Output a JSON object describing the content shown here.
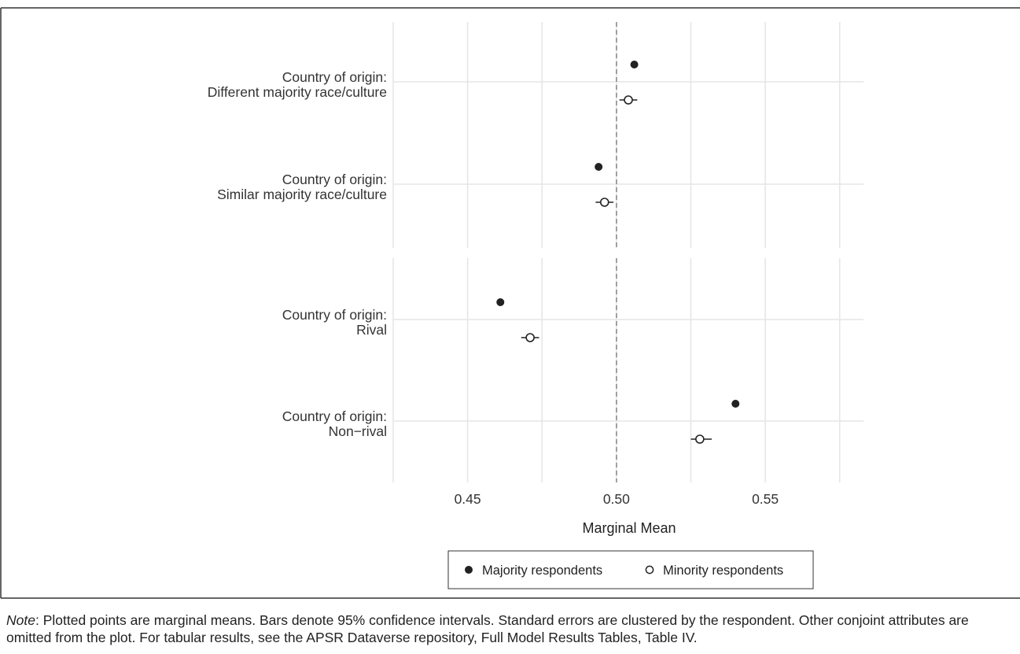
{
  "chart_data": {
    "type": "scatter",
    "xlabel": "Marginal Mean",
    "xlim": [
      0.425,
      0.583
    ],
    "x_ticks": [
      "0.45",
      "0.50",
      "0.55"
    ],
    "x_tick_values": [
      0.45,
      0.5,
      0.55
    ],
    "reference_line": 0.5,
    "groups": [
      {
        "label_line1": "Country of origin:",
        "label_line2": "Different majority race/culture"
      },
      {
        "label_line1": "Country of origin:",
        "label_line2": "Similar majority race/culture"
      },
      {
        "label_line1": "Country of origin:",
        "label_line2": "Rival"
      },
      {
        "label_line1": "Country of origin:",
        "label_line2": "Non−rival"
      }
    ],
    "series": [
      {
        "name": "Majority respondents",
        "marker": "filled",
        "values": [
          0.506,
          0.494,
          0.461,
          0.54
        ],
        "ci_low": [
          0.505,
          0.493,
          0.46,
          0.539
        ],
        "ci_high": [
          0.507,
          0.495,
          0.462,
          0.541
        ]
      },
      {
        "name": "Minority respondents",
        "marker": "open",
        "values": [
          0.504,
          0.496,
          0.471,
          0.528
        ],
        "ci_low": [
          0.501,
          0.493,
          0.468,
          0.525
        ],
        "ci_high": [
          0.507,
          0.499,
          0.474,
          0.532
        ]
      }
    ],
    "legend_position": "bottom",
    "grid": true
  },
  "note": {
    "prefix": "Note",
    "text": ": Plotted points are marginal means. Bars denote 95% confidence intervals. Standard errors are clustered by the respondent. Other conjoint attributes are omitted from the plot. For tabular results, see the APSR Dataverse repository, Full Model Results Tables, Table IV."
  },
  "colors": {
    "point": "#222222",
    "grid": "#e6e6e6",
    "reference": "#8c8c8c"
  }
}
